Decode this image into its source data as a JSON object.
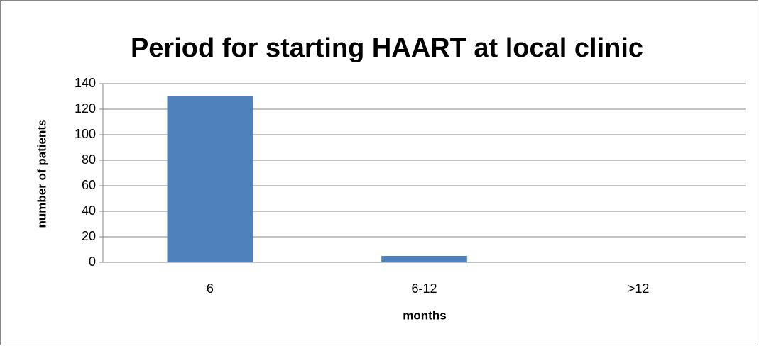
{
  "chart_data": {
    "type": "bar",
    "title": "Period for starting HAART at local clinic",
    "x_label": "months",
    "y_label": "number of patients",
    "categories": [
      "6",
      "6-12",
      ">12"
    ],
    "values": [
      130,
      5,
      0
    ],
    "color": "#4f81bd",
    "ylim": [
      0,
      140
    ],
    "yticks": [
      0,
      20,
      40,
      60,
      80,
      100,
      120,
      140
    ],
    "grid": true
  }
}
